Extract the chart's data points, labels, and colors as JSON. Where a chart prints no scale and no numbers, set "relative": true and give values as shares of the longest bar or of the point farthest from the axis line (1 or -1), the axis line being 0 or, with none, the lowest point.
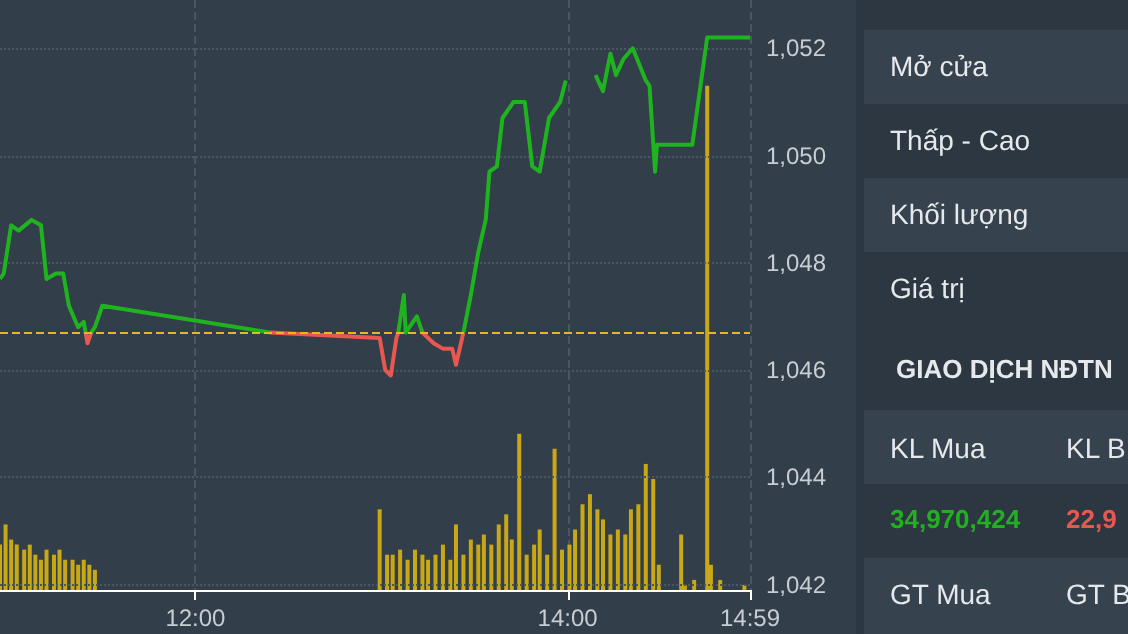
{
  "chart_data": [
    {
      "type": "line",
      "marker": "none",
      "grid": "y",
      "tick_labels": "y",
      "xlim": [
        10.95,
        14.98
      ],
      "ylim": [
        1041.9,
        1052.9
      ],
      "yticks": [
        {
          "value": 1042,
          "label": "1,042"
        },
        {
          "value": 1044,
          "label": "1,044"
        },
        {
          "value": 1046,
          "label": "1,046"
        },
        {
          "value": 1048,
          "label": "1,048"
        },
        {
          "value": 1050,
          "label": "1,050"
        },
        {
          "value": 1052,
          "label": "1,052"
        }
      ],
      "ref_lines": [
        {
          "axis": "y",
          "value": 1046.7,
          "color": "#e6b820",
          "line_style": "dashed"
        }
      ],
      "series": [
        {
          "color": "#1fb41f",
          "x": [
            10.95,
            10.97,
            11.01,
            11.05,
            11.12,
            11.17,
            11.2,
            11.25,
            11.29,
            11.32,
            11.37,
            11.4,
            11.41,
            11.42,
            11.44,
            11.46,
            11.5,
            12.4,
            12.7,
            13.09,
            13.12,
            13.13,
            13.19,
            13.22,
            13.3,
            13.44,
            13.48,
            13.52,
            13.56,
            13.58,
            13.62,
            13.65,
            13.71,
            13.77,
            13.81,
            13.85,
            13.9,
            13.96,
            13.99,
            14.05,
            14.13,
            14.15,
            14.19,
            14.23,
            14.26,
            14.3,
            14.35,
            14.42,
            14.44,
            14.47,
            14.48,
            14.67,
            14.75,
            14.98
          ],
          "values": [
            1047.7,
            1047.8,
            1048.7,
            1048.6,
            1048.8,
            1048.7,
            1047.7,
            1047.8,
            1047.8,
            1047.2,
            1046.8,
            1046.9,
            1046.7,
            null,
            1046.7,
            1046.8,
            1047.2,
            1046.7,
            null,
            1046.7,
            1047.4,
            1046.7,
            1047.0,
            1046.7,
            null,
            1046.7,
            1047.4,
            1048.2,
            1048.8,
            1049.7,
            1049.8,
            1050.7,
            1051.0,
            1051.0,
            1049.8,
            1049.7,
            1050.7,
            1051.0,
            1051.4,
            null,
            null,
            1051.5,
            1051.2,
            1051.9,
            1051.5,
            1051.8,
            1052.0,
            1051.4,
            1051.3,
            1049.7,
            1050.2,
            1050.2,
            1052.2,
            1052.2
          ]
        },
        {
          "color": "#e8584f",
          "x": [
            11.41,
            11.42,
            11.44,
            12.0,
            12.4,
            12.99,
            13.02,
            13.05,
            13.08,
            13.09,
            13.15,
            13.22,
            13.28,
            13.33,
            13.38,
            13.4,
            13.44
          ],
          "values": [
            1046.7,
            1046.5,
            1046.7,
            null,
            1046.7,
            1046.6,
            1046.0,
            1045.9,
            1046.6,
            1046.7,
            null,
            1046.7,
            1046.5,
            1046.4,
            1046.4,
            1046.1,
            1046.7
          ]
        }
      ]
    },
    {
      "type": "bar",
      "relative": true,
      "grid": "x",
      "tick_labels": "x",
      "xlim": [
        10.95,
        14.98
      ],
      "xticks": [
        {
          "value": 12,
          "label": "12:00"
        },
        {
          "value": 14,
          "label": "14:00"
        },
        {
          "value": 14.98,
          "label": "14:59"
        }
      ],
      "series": [
        {
          "color": "#c9a816",
          "x": [
            10.95,
            10.98,
            11.01,
            11.04,
            11.08,
            11.11,
            11.14,
            11.17,
            11.2,
            11.24,
            11.27,
            11.3,
            11.34,
            11.37,
            11.4,
            11.43,
            11.46,
            12.99,
            13.03,
            13.06,
            13.1,
            13.14,
            13.18,
            13.22,
            13.25,
            13.29,
            13.33,
            13.37,
            13.4,
            13.44,
            13.48,
            13.52,
            13.55,
            13.59,
            13.63,
            13.67,
            13.7,
            13.74,
            13.78,
            13.82,
            13.85,
            13.89,
            13.93,
            13.97,
            14.01,
            14.04,
            14.08,
            14.12,
            14.16,
            14.19,
            14.23,
            14.27,
            14.31,
            14.34,
            14.38,
            14.42,
            14.46,
            14.49,
            14.61,
            14.63,
            14.68,
            14.75,
            14.77,
            14.82,
            14.95
          ],
          "values": [
            0.09,
            0.13,
            0.1,
            0.09,
            0.08,
            0.09,
            0.07,
            0.06,
            0.08,
            0.07,
            0.08,
            0.06,
            0.06,
            0.05,
            0.06,
            0.05,
            0.04,
            0.16,
            0.07,
            0.07,
            0.08,
            0.06,
            0.08,
            0.07,
            0.06,
            0.07,
            0.09,
            0.06,
            0.13,
            0.07,
            0.1,
            0.09,
            0.11,
            0.09,
            0.13,
            0.15,
            0.1,
            0.31,
            0.07,
            0.09,
            0.12,
            0.07,
            0.28,
            0.08,
            0.09,
            0.12,
            0.17,
            0.19,
            0.16,
            0.14,
            0.11,
            0.12,
            0.11,
            0.16,
            0.17,
            0.25,
            0.22,
            0.05,
            0.11,
            0.01,
            0.02,
            1.0,
            0.05,
            0.02,
            0.01
          ]
        }
      ]
    },
    {
      "type": "other",
      "annotations": [
        "Mở cửa",
        "Thấp - Cao",
        "Khối lượng",
        "Giá trị",
        "GIAO DỊCH NĐTN",
        "KL Mua",
        "KL B",
        "34,970,424",
        "22,9",
        "GT Mua",
        "GT B"
      ]
    }
  ]
}
